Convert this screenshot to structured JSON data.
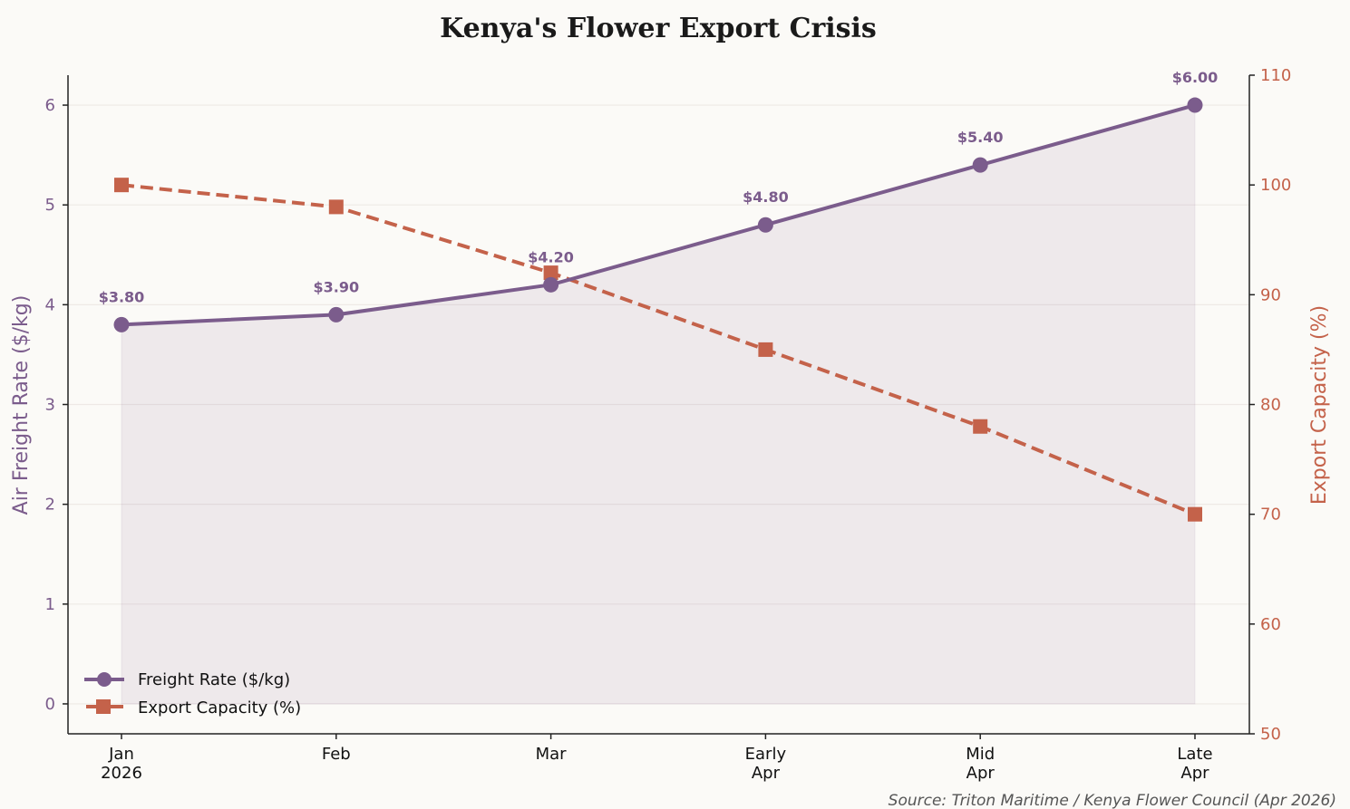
{
  "chart_data": {
    "type": "line",
    "title": "Kenya's Flower Export Crisis",
    "categories": [
      "Jan\n2026",
      "Feb",
      "Mar",
      "Early\nApr",
      "Mid\nApr",
      "Late\nApr"
    ],
    "series": [
      {
        "name": "Freight Rate ($/kg)",
        "axis": "left",
        "values": [
          3.8,
          3.9,
          4.2,
          4.8,
          5.4,
          6.0
        ],
        "data_labels": [
          "$3.80",
          "$3.90",
          "$4.20",
          "$4.80",
          "$5.40",
          "$6.00"
        ],
        "color": "#7b5c8c",
        "marker": "circle",
        "linestyle": "solid",
        "area_fill": true
      },
      {
        "name": "Export Capacity (%)",
        "axis": "right",
        "values": [
          100,
          98,
          92,
          85,
          78,
          70
        ],
        "color": "#c4624a",
        "marker": "square",
        "linestyle": "dashed"
      }
    ],
    "ylabel": "Air Freight Rate ($/kg)",
    "ylim": [
      -0.3,
      6.3
    ],
    "yticks": [
      0,
      1,
      2,
      3,
      4,
      5,
      6
    ],
    "y2label": "Export Capacity (%)",
    "y2lim": [
      50,
      110
    ],
    "y2ticks": [
      50,
      60,
      70,
      80,
      90,
      100,
      110
    ],
    "grid": "horizontal",
    "legend_position": "bottom-left",
    "source": "Source: Triton Maritime / Kenya Flower Council (Apr 2026)"
  }
}
